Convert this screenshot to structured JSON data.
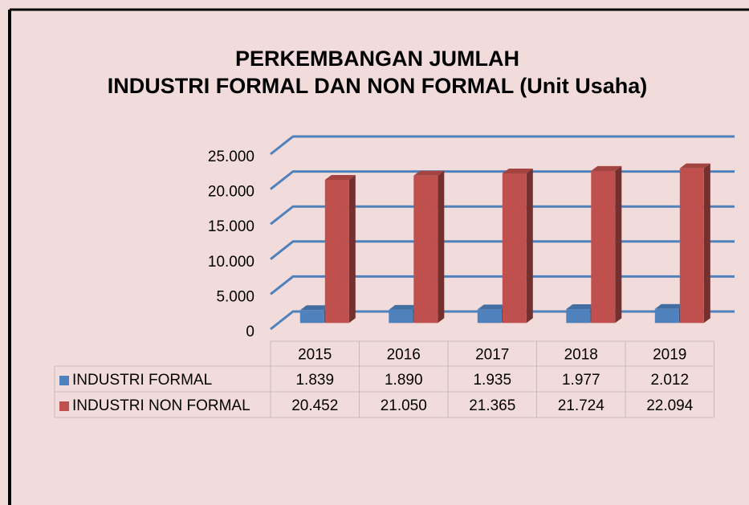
{
  "chart_data": {
    "type": "bar3d",
    "title": [
      "PERKEMBANGAN JUMLAH",
      "INDUSTRI FORMAL DAN NON FORMAL (Unit Usaha)"
    ],
    "categories": [
      "2015",
      "2016",
      "2017",
      "2018",
      "2019"
    ],
    "series": [
      {
        "name": "INDUSTRI FORMAL",
        "color": "#4f81bd",
        "values": [
          1839,
          1890,
          1935,
          1977,
          2012
        ],
        "value_labels": [
          "1.839",
          "1.890",
          "1.935",
          "1.977",
          "2.012"
        ]
      },
      {
        "name": "INDUSTRI NON FORMAL",
        "color": "#c0504d",
        "values": [
          20452,
          21050,
          21365,
          21724,
          22094
        ],
        "value_labels": [
          "20.452",
          "21.050",
          "21.365",
          "21.724",
          "22.094"
        ]
      }
    ],
    "ylim": [
      0,
      25000
    ],
    "yticks": [
      0,
      {
        "value": 5000,
        "label": "5.000"
      },
      {
        "value": 10000,
        "label": "10.000"
      },
      {
        "value": 15000,
        "label": "15.000"
      },
      {
        "value": 20000,
        "label": "20.000"
      },
      {
        "value": 25000,
        "label": "25.000"
      }
    ],
    "grid": true,
    "grid_color": "#4f81bd",
    "data_table": true
  }
}
